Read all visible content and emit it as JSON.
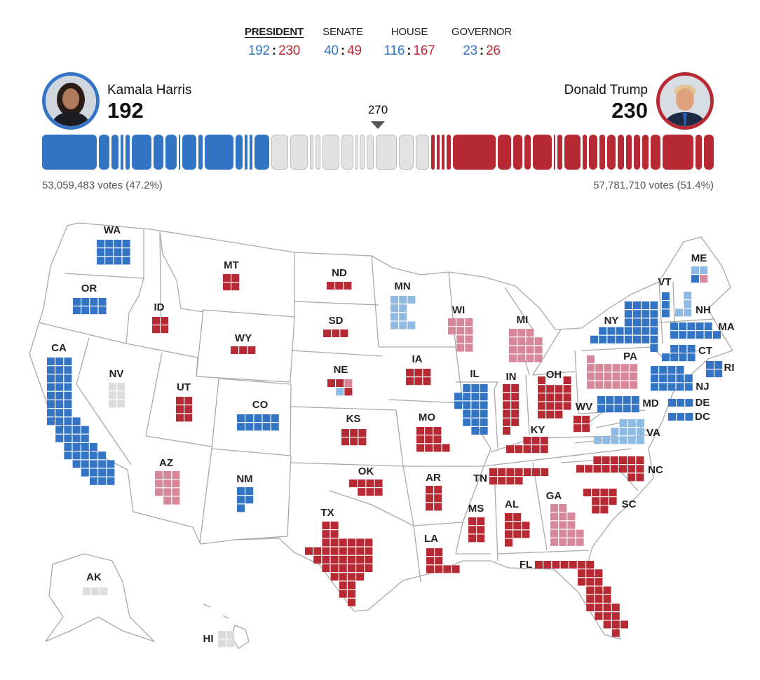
{
  "tabs": [
    {
      "label": "PRESIDENT",
      "dem": "192",
      "rep": "230",
      "active": true
    },
    {
      "label": "SENATE",
      "dem": "40",
      "rep": "49",
      "active": false
    },
    {
      "label": "HOUSE",
      "dem": "116",
      "rep": "167",
      "active": false
    },
    {
      "label": "GOVERNOR",
      "dem": "23",
      "rep": "26",
      "active": false
    }
  ],
  "candidates": {
    "dem": {
      "name": "Kamala Harris",
      "ev": "192",
      "votes": "53,059,483 votes (47.2%)",
      "photo": "harris-portrait"
    },
    "rep": {
      "name": "Donald Trump",
      "ev": "230",
      "votes": "57,781,710 votes (51.4%)",
      "photo": "trump-portrait"
    }
  },
  "threshold": "270",
  "bar": {
    "dem_segments": [
      54,
      10,
      7,
      3,
      4,
      19,
      10,
      11,
      1,
      14,
      4,
      28,
      7,
      3,
      3,
      14
    ],
    "undecided_segments": [
      15,
      16,
      2,
      4,
      15,
      10,
      1,
      3,
      6,
      19,
      13,
      12
    ],
    "rep_segments": [
      3,
      3,
      3,
      4,
      42,
      13,
      9,
      6,
      19,
      1,
      5,
      16,
      4,
      8,
      6,
      8,
      6,
      6,
      6,
      6,
      10,
      30,
      6,
      10
    ]
  },
  "colors": {
    "dem": "#3474c4",
    "rep": "#b72a33",
    "lean_dem": "#8fbae3",
    "lean_rep": "#d8879a",
    "undecided": "#dcdcdc"
  },
  "states": [
    {
      "abbr": "WA",
      "ev": 12,
      "status": "dem"
    },
    {
      "abbr": "OR",
      "ev": 8,
      "status": "dem"
    },
    {
      "abbr": "CA",
      "ev": 54,
      "status": "dem"
    },
    {
      "abbr": "NV",
      "ev": 6,
      "status": "undecided"
    },
    {
      "abbr": "ID",
      "ev": 4,
      "status": "rep"
    },
    {
      "abbr": "MT",
      "ev": 4,
      "status": "rep"
    },
    {
      "abbr": "WY",
      "ev": 3,
      "status": "rep"
    },
    {
      "abbr": "UT",
      "ev": 6,
      "status": "rep"
    },
    {
      "abbr": "CO",
      "ev": 10,
      "status": "dem"
    },
    {
      "abbr": "AZ",
      "ev": 11,
      "status": "lean_rep"
    },
    {
      "abbr": "NM",
      "ev": 5,
      "status": "dem"
    },
    {
      "abbr": "ND",
      "ev": 3,
      "status": "rep"
    },
    {
      "abbr": "SD",
      "ev": 3,
      "status": "rep"
    },
    {
      "abbr": "NE",
      "ev": 5,
      "status": "split",
      "tiles": [
        "rep",
        "rep",
        "lean_rep",
        "lean_dem",
        "rep"
      ]
    },
    {
      "abbr": "KS",
      "ev": 6,
      "status": "rep"
    },
    {
      "abbr": "OK",
      "ev": 7,
      "status": "rep"
    },
    {
      "abbr": "TX",
      "ev": 40,
      "status": "rep"
    },
    {
      "abbr": "MN",
      "ev": 10,
      "status": "lean_dem"
    },
    {
      "abbr": "IA",
      "ev": 6,
      "status": "rep"
    },
    {
      "abbr": "MO",
      "ev": 10,
      "status": "rep"
    },
    {
      "abbr": "AR",
      "ev": 6,
      "status": "rep"
    },
    {
      "abbr": "LA",
      "ev": 8,
      "status": "rep"
    },
    {
      "abbr": "WI",
      "ev": 10,
      "status": "lean_rep"
    },
    {
      "abbr": "MI",
      "ev": 15,
      "status": "lean_rep"
    },
    {
      "abbr": "IL",
      "ev": 19,
      "status": "dem"
    },
    {
      "abbr": "IN",
      "ev": 11,
      "status": "rep"
    },
    {
      "abbr": "OH",
      "ev": 17,
      "status": "rep"
    },
    {
      "abbr": "KY",
      "ev": 8,
      "status": "rep"
    },
    {
      "abbr": "TN",
      "ev": 11,
      "status": "rep"
    },
    {
      "abbr": "MS",
      "ev": 6,
      "status": "rep"
    },
    {
      "abbr": "AL",
      "ev": 9,
      "status": "rep"
    },
    {
      "abbr": "GA",
      "ev": 16,
      "status": "lean_rep"
    },
    {
      "abbr": "FL",
      "ev": 30,
      "status": "rep"
    },
    {
      "abbr": "SC",
      "ev": 9,
      "status": "rep"
    },
    {
      "abbr": "NC",
      "ev": 16,
      "status": "rep"
    },
    {
      "abbr": "VA",
      "ev": 13,
      "status": "lean_dem"
    },
    {
      "abbr": "WV",
      "ev": 4,
      "status": "rep"
    },
    {
      "abbr": "MD",
      "ev": 10,
      "status": "dem"
    },
    {
      "abbr": "DE",
      "ev": 3,
      "status": "dem"
    },
    {
      "abbr": "DC",
      "ev": 3,
      "status": "dem"
    },
    {
      "abbr": "PA",
      "ev": 19,
      "status": "lean_rep"
    },
    {
      "abbr": "NJ",
      "ev": 14,
      "status": "dem"
    },
    {
      "abbr": "NY",
      "ev": 28,
      "status": "dem"
    },
    {
      "abbr": "CT",
      "ev": 7,
      "status": "dem"
    },
    {
      "abbr": "RI",
      "ev": 4,
      "status": "dem"
    },
    {
      "abbr": "MA",
      "ev": 11,
      "status": "dem"
    },
    {
      "abbr": "VT",
      "ev": 3,
      "status": "dem"
    },
    {
      "abbr": "NH",
      "ev": 4,
      "status": "lean_dem"
    },
    {
      "abbr": "ME",
      "ev": 4,
      "status": "split",
      "tiles": [
        "lean_dem",
        "lean_dem",
        "dem",
        "lean_rep"
      ]
    },
    {
      "abbr": "AK",
      "ev": 3,
      "status": "undecided"
    },
    {
      "abbr": "HI",
      "ev": 4,
      "status": "undecided"
    }
  ]
}
